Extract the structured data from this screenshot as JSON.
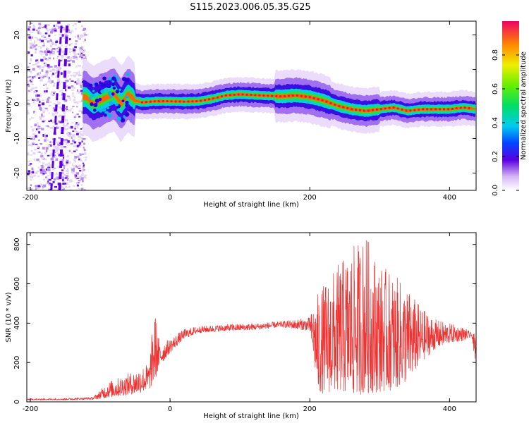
{
  "title": "S115.2023.006.05.35.G25",
  "spectrogram": {
    "type": "heatmap",
    "xlabel": "Height of straight line (km)",
    "ylabel": "Frequency (Hz)",
    "xlim": [
      -205,
      438
    ],
    "ylim": [
      -25,
      24
    ],
    "xticks": [
      -200,
      0,
      200,
      400
    ],
    "yticks": [
      20,
      10,
      0,
      -10,
      -20
    ],
    "colorbar": {
      "label": "Normalized spectral amplitude",
      "range": [
        0,
        1
      ],
      "ticks": [
        0.0,
        0.2,
        0.4,
        0.6,
        0.8
      ]
    },
    "centerline": [
      [
        -120,
        2
      ],
      [
        -110,
        0
      ],
      [
        -100,
        1
      ],
      [
        -90,
        2
      ],
      [
        -80,
        3
      ],
      [
        -70,
        0
      ],
      [
        -60,
        3
      ],
      [
        -50,
        1
      ],
      [
        -40,
        0.5
      ],
      [
        -20,
        0.8
      ],
      [
        0,
        0.8
      ],
      [
        20,
        0.7
      ],
      [
        40,
        0.8
      ],
      [
        60,
        1.5
      ],
      [
        80,
        2.5
      ],
      [
        100,
        2.8
      ],
      [
        120,
        2.6
      ],
      [
        140,
        2.4
      ],
      [
        160,
        2.2
      ],
      [
        180,
        2.5
      ],
      [
        200,
        2.0
      ],
      [
        220,
        1.0
      ],
      [
        240,
        -0.5
      ],
      [
        260,
        -1.5
      ],
      [
        280,
        -2.0
      ],
      [
        300,
        -1.5
      ],
      [
        320,
        -1.0
      ],
      [
        340,
        -2.0
      ],
      [
        360,
        -1.5
      ],
      [
        380,
        -1.5
      ],
      [
        400,
        -1.5
      ],
      [
        420,
        -1.0
      ],
      [
        438,
        -1.5
      ]
    ],
    "noise_region_x": [
      -205,
      -122
    ]
  },
  "snr": {
    "type": "line",
    "xlabel": "Height of straight line (km)",
    "ylabel": "SNR (10 * v/v)",
    "xlim": [
      -205,
      438
    ],
    "ylim": [
      0,
      860
    ],
    "xticks": [
      -200,
      0,
      200,
      400
    ],
    "yticks": [
      0,
      200,
      400,
      600,
      800
    ],
    "color": "#ee3333",
    "envelope": [
      [
        -205,
        10,
        15
      ],
      [
        -150,
        10,
        18
      ],
      [
        -110,
        12,
        25
      ],
      [
        -100,
        15,
        60
      ],
      [
        -90,
        20,
        100
      ],
      [
        -70,
        30,
        130
      ],
      [
        -50,
        40,
        160
      ],
      [
        -30,
        60,
        200
      ],
      [
        -22,
        100,
        480
      ],
      [
        -15,
        180,
        300
      ],
      [
        0,
        250,
        320
      ],
      [
        20,
        320,
        370
      ],
      [
        40,
        350,
        385
      ],
      [
        80,
        360,
        395
      ],
      [
        120,
        365,
        400
      ],
      [
        160,
        380,
        410
      ],
      [
        200,
        360,
        430
      ],
      [
        212,
        40,
        560
      ],
      [
        240,
        50,
        700
      ],
      [
        260,
        30,
        780
      ],
      [
        280,
        40,
        860
      ],
      [
        300,
        50,
        700
      ],
      [
        320,
        60,
        650
      ],
      [
        340,
        100,
        580
      ],
      [
        360,
        200,
        480
      ],
      [
        380,
        270,
        420
      ],
      [
        400,
        300,
        400
      ],
      [
        420,
        310,
        380
      ],
      [
        432,
        330,
        350
      ],
      [
        438,
        150,
        340
      ]
    ]
  }
}
